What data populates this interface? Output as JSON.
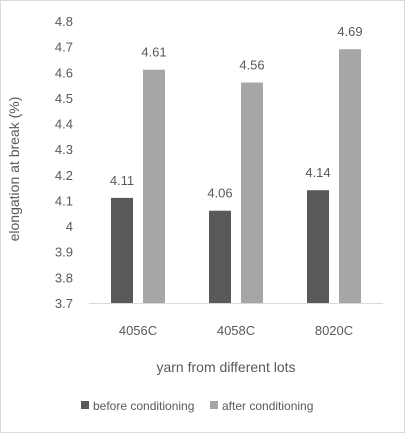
{
  "chart_data": {
    "type": "bar",
    "categories": [
      "4056C",
      "4058C",
      "8020C"
    ],
    "series": [
      {
        "name": "before conditioning",
        "values": [
          4.11,
          4.06,
          4.14
        ],
        "color": "#595959"
      },
      {
        "name": "after conditioning",
        "values": [
          4.61,
          4.56,
          4.69
        ],
        "color": "#a6a6a6"
      }
    ],
    "value_labels": [
      [
        "4.11",
        "4.06",
        "4.14"
      ],
      [
        "4.61",
        "4.56",
        "4.69"
      ]
    ],
    "title": "",
    "xlabel": "yarn from different lots",
    "ylabel": "elongation at break (%)",
    "ylim": [
      3.7,
      4.8
    ],
    "yticks": [
      "3.7",
      "3.8",
      "3.9",
      "4",
      "4.1",
      "4.2",
      "4.3",
      "4.4",
      "4.5",
      "4.6",
      "4.7",
      "4.8"
    ],
    "grid": false,
    "legend": "bottom"
  }
}
